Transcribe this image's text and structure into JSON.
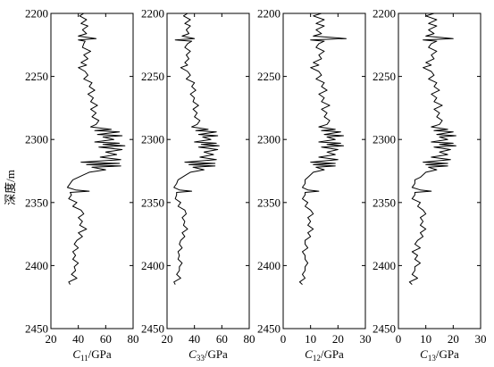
{
  "chart_data": {
    "type": "line",
    "orientation": "vertical-depth",
    "ylabel": "深度/m",
    "ylim": [
      2200,
      2450
    ],
    "y_ticks": [
      2200,
      2250,
      2300,
      2350,
      2400,
      2450
    ],
    "y_inverted": true,
    "panels": [
      {
        "name": "C11",
        "xlabel_symbol": "C",
        "xlabel_sub": "11",
        "xlabel_unit": "/GPa",
        "xlim": [
          20,
          80
        ],
        "x_ticks": [
          20,
          40,
          60,
          80
        ],
        "series": [
          {
            "depth": [
              2200,
              2202,
              2205,
              2208,
              2210,
              2213,
              2216,
              2218,
              2220,
              2221,
              2222,
              2224,
              2227,
              2230,
              2233,
              2236,
              2239,
              2241,
              2243,
              2246,
              2249,
              2252,
              2255,
              2258,
              2261,
              2264,
              2267,
              2270,
              2273,
              2276,
              2279,
              2282,
              2285,
              2288,
              2290,
              2292,
              2293,
              2294,
              2296,
              2297,
              2298,
              2300,
              2302,
              2303,
              2304,
              2305,
              2306,
              2308,
              2310,
              2312,
              2314,
              2316,
              2318,
              2319,
              2320,
              2321,
              2322,
              2324,
              2326,
              2328,
              2330,
              2332,
              2335,
              2338,
              2340,
              2341,
              2342,
              2344,
              2347,
              2350,
              2353,
              2356,
              2359,
              2362,
              2365,
              2368,
              2371,
              2374,
              2377,
              2380,
              2383,
              2386,
              2389,
              2392,
              2395,
              2398,
              2401,
              2404,
              2407,
              2410,
              2413,
              2415
            ],
            "values": [
              44,
              41,
              46,
              42,
              47,
              43,
              46,
              40,
              53,
              40,
              45,
              44,
              43,
              49,
              44,
              47,
              42,
              46,
              40,
              45,
              47,
              44,
              50,
              48,
              52,
              47,
              51,
              49,
              54,
              49,
              53,
              50,
              55,
              53,
              49,
              64,
              52,
              70,
              54,
              72,
              58,
              66,
              52,
              70,
              58,
              74,
              55,
              72,
              60,
              68,
              56,
              71,
              42,
              70,
              46,
              71,
              50,
              60,
              48,
              44,
              40,
              36,
              34,
              32,
              38,
              48,
              34,
              35,
              33,
              39,
              36,
              42,
              44,
              40,
              43,
              41,
              46,
              40,
              43,
              39,
              37,
              40,
              36,
              38,
              36,
              40,
              37,
              38,
              35,
              39,
              33,
              34
            ]
          }
        ]
      },
      {
        "name": "C33",
        "xlabel_symbol": "C",
        "xlabel_sub": "33",
        "xlabel_unit": "/GPa",
        "xlim": [
          20,
          80
        ],
        "x_ticks": [
          20,
          40,
          60,
          80
        ],
        "series": [
          {
            "depth": [
              2200,
              2202,
              2205,
              2208,
              2210,
              2213,
              2216,
              2218,
              2220,
              2221,
              2222,
              2224,
              2227,
              2230,
              2233,
              2236,
              2239,
              2241,
              2243,
              2246,
              2249,
              2252,
              2255,
              2258,
              2261,
              2264,
              2267,
              2270,
              2273,
              2276,
              2279,
              2282,
              2285,
              2288,
              2290,
              2292,
              2293,
              2294,
              2296,
              2297,
              2298,
              2300,
              2302,
              2303,
              2304,
              2305,
              2306,
              2308,
              2310,
              2312,
              2314,
              2316,
              2318,
              2319,
              2320,
              2321,
              2322,
              2324,
              2326,
              2328,
              2330,
              2332,
              2335,
              2338,
              2340,
              2341,
              2342,
              2344,
              2347,
              2350,
              2353,
              2356,
              2359,
              2362,
              2365,
              2368,
              2371,
              2374,
              2377,
              2380,
              2383,
              2386,
              2389,
              2392,
              2395,
              2398,
              2401,
              2404,
              2407,
              2410,
              2413,
              2415
            ],
            "values": [
              35,
              32,
              37,
              33,
              37,
              34,
              36,
              31,
              40,
              26,
              38,
              35,
              33,
              37,
              34,
              36,
              33,
              35,
              30,
              35,
              37,
              34,
              40,
              38,
              41,
              37,
              40,
              39,
              43,
              39,
              42,
              40,
              44,
              42,
              38,
              50,
              41,
              56,
              43,
              57,
              46,
              52,
              40,
              56,
              45,
              58,
              43,
              57,
              47,
              54,
              44,
              56,
              33,
              55,
              36,
              55,
              39,
              47,
              37,
              34,
              31,
              28,
              27,
              25,
              29,
              38,
              27,
              27,
              26,
              30,
              28,
              33,
              34,
              31,
              33,
              32,
              35,
              31,
              33,
              30,
              29,
              31,
              28,
              29,
              28,
              31,
              29,
              29,
              27,
              30,
              25,
              26
            ]
          }
        ]
      },
      {
        "name": "C12",
        "xlabel_symbol": "C",
        "xlabel_sub": "12",
        "xlabel_unit": "/GPa",
        "xlim": [
          0,
          30
        ],
        "x_ticks": [
          0,
          10,
          20,
          30
        ],
        "series": [
          {
            "depth": [
              2200,
              2202,
              2205,
              2208,
              2210,
              2213,
              2216,
              2218,
              2220,
              2221,
              2222,
              2224,
              2227,
              2230,
              2233,
              2236,
              2239,
              2241,
              2243,
              2246,
              2249,
              2252,
              2255,
              2258,
              2261,
              2264,
              2267,
              2270,
              2273,
              2276,
              2279,
              2282,
              2285,
              2288,
              2290,
              2292,
              2293,
              2294,
              2296,
              2297,
              2298,
              2300,
              2302,
              2303,
              2304,
              2305,
              2306,
              2308,
              2310,
              2312,
              2314,
              2316,
              2318,
              2319,
              2320,
              2321,
              2322,
              2324,
              2326,
              2328,
              2330,
              2332,
              2335,
              2338,
              2340,
              2341,
              2342,
              2344,
              2347,
              2350,
              2353,
              2356,
              2359,
              2362,
              2365,
              2368,
              2371,
              2374,
              2377,
              2380,
              2383,
              2386,
              2389,
              2392,
              2395,
              2398,
              2401,
              2404,
              2407,
              2410,
              2413,
              2415
            ],
            "values": [
              14,
              11,
              15,
              12,
              15,
              12,
              14,
              11,
              23,
              10,
              15,
              13,
              12,
              15,
              13,
              14,
              11,
              13,
              10,
              13,
              14,
              12,
              15,
              14,
              16,
              13,
              15,
              14,
              17,
              14,
              16,
              15,
              17,
              16,
              13,
              19,
              14,
              21,
              15,
              22,
              16,
              19,
              13,
              21,
              16,
              22,
              14,
              20,
              16,
              19,
              13,
              20,
              10,
              19,
              11,
              19,
              12,
              15,
              11,
              10,
              9,
              8,
              8,
              7,
              9,
              13,
              8,
              8,
              7,
              9,
              8,
              10,
              11,
              9,
              10,
              9,
              11,
              9,
              10,
              8,
              8,
              9,
              7,
              8,
              8,
              9,
              8,
              8,
              7,
              8,
              6,
              7
            ]
          }
        ]
      },
      {
        "name": "C13",
        "xlabel_symbol": "C",
        "xlabel_sub": "13",
        "xlabel_unit": "/GPa",
        "xlim": [
          0,
          30
        ],
        "x_ticks": [
          0,
          10,
          20,
          30
        ],
        "x_tick_labels": [
          "0",
          "10",
          "20",
          "30"
        ],
        "series": [
          {
            "depth": [
              2200,
              2202,
              2205,
              2208,
              2210,
              2213,
              2216,
              2218,
              2220,
              2221,
              2222,
              2224,
              2227,
              2230,
              2233,
              2236,
              2239,
              2241,
              2243,
              2246,
              2249,
              2252,
              2255,
              2258,
              2261,
              2264,
              2267,
              2270,
              2273,
              2276,
              2279,
              2282,
              2285,
              2288,
              2290,
              2292,
              2293,
              2294,
              2296,
              2297,
              2298,
              2300,
              2302,
              2303,
              2304,
              2305,
              2306,
              2308,
              2310,
              2312,
              2314,
              2316,
              2318,
              2319,
              2320,
              2321,
              2322,
              2324,
              2326,
              2328,
              2330,
              2332,
              2335,
              2338,
              2340,
              2341,
              2342,
              2344,
              2347,
              2350,
              2353,
              2356,
              2359,
              2362,
              2365,
              2368,
              2371,
              2374,
              2377,
              2380,
              2383,
              2386,
              2389,
              2392,
              2395,
              2398,
              2401,
              2404,
              2407,
              2410,
              2413,
              2415
            ],
            "values": [
              13,
              10,
              14,
              11,
              14,
              11,
              13,
              10,
              20,
              9,
              14,
              12,
              11,
              14,
              12,
              13,
              10,
              12,
              9,
              12,
              13,
              11,
              14,
              13,
              15,
              12,
              14,
              13,
              16,
              13,
              15,
              14,
              16,
              15,
              12,
              18,
              13,
              20,
              14,
              21,
              15,
              18,
              12,
              20,
              15,
              21,
              13,
              19,
              15,
              18,
              12,
              19,
              9,
              18,
              10,
              18,
              11,
              14,
              10,
              9,
              8,
              6,
              6,
              5,
              8,
              12,
              6,
              6,
              5,
              8,
              7,
              9,
              10,
              8,
              9,
              8,
              10,
              8,
              9,
              7,
              6,
              8,
              5,
              7,
              6,
              8,
              6,
              6,
              5,
              7,
              4,
              5
            ]
          }
        ]
      }
    ]
  }
}
